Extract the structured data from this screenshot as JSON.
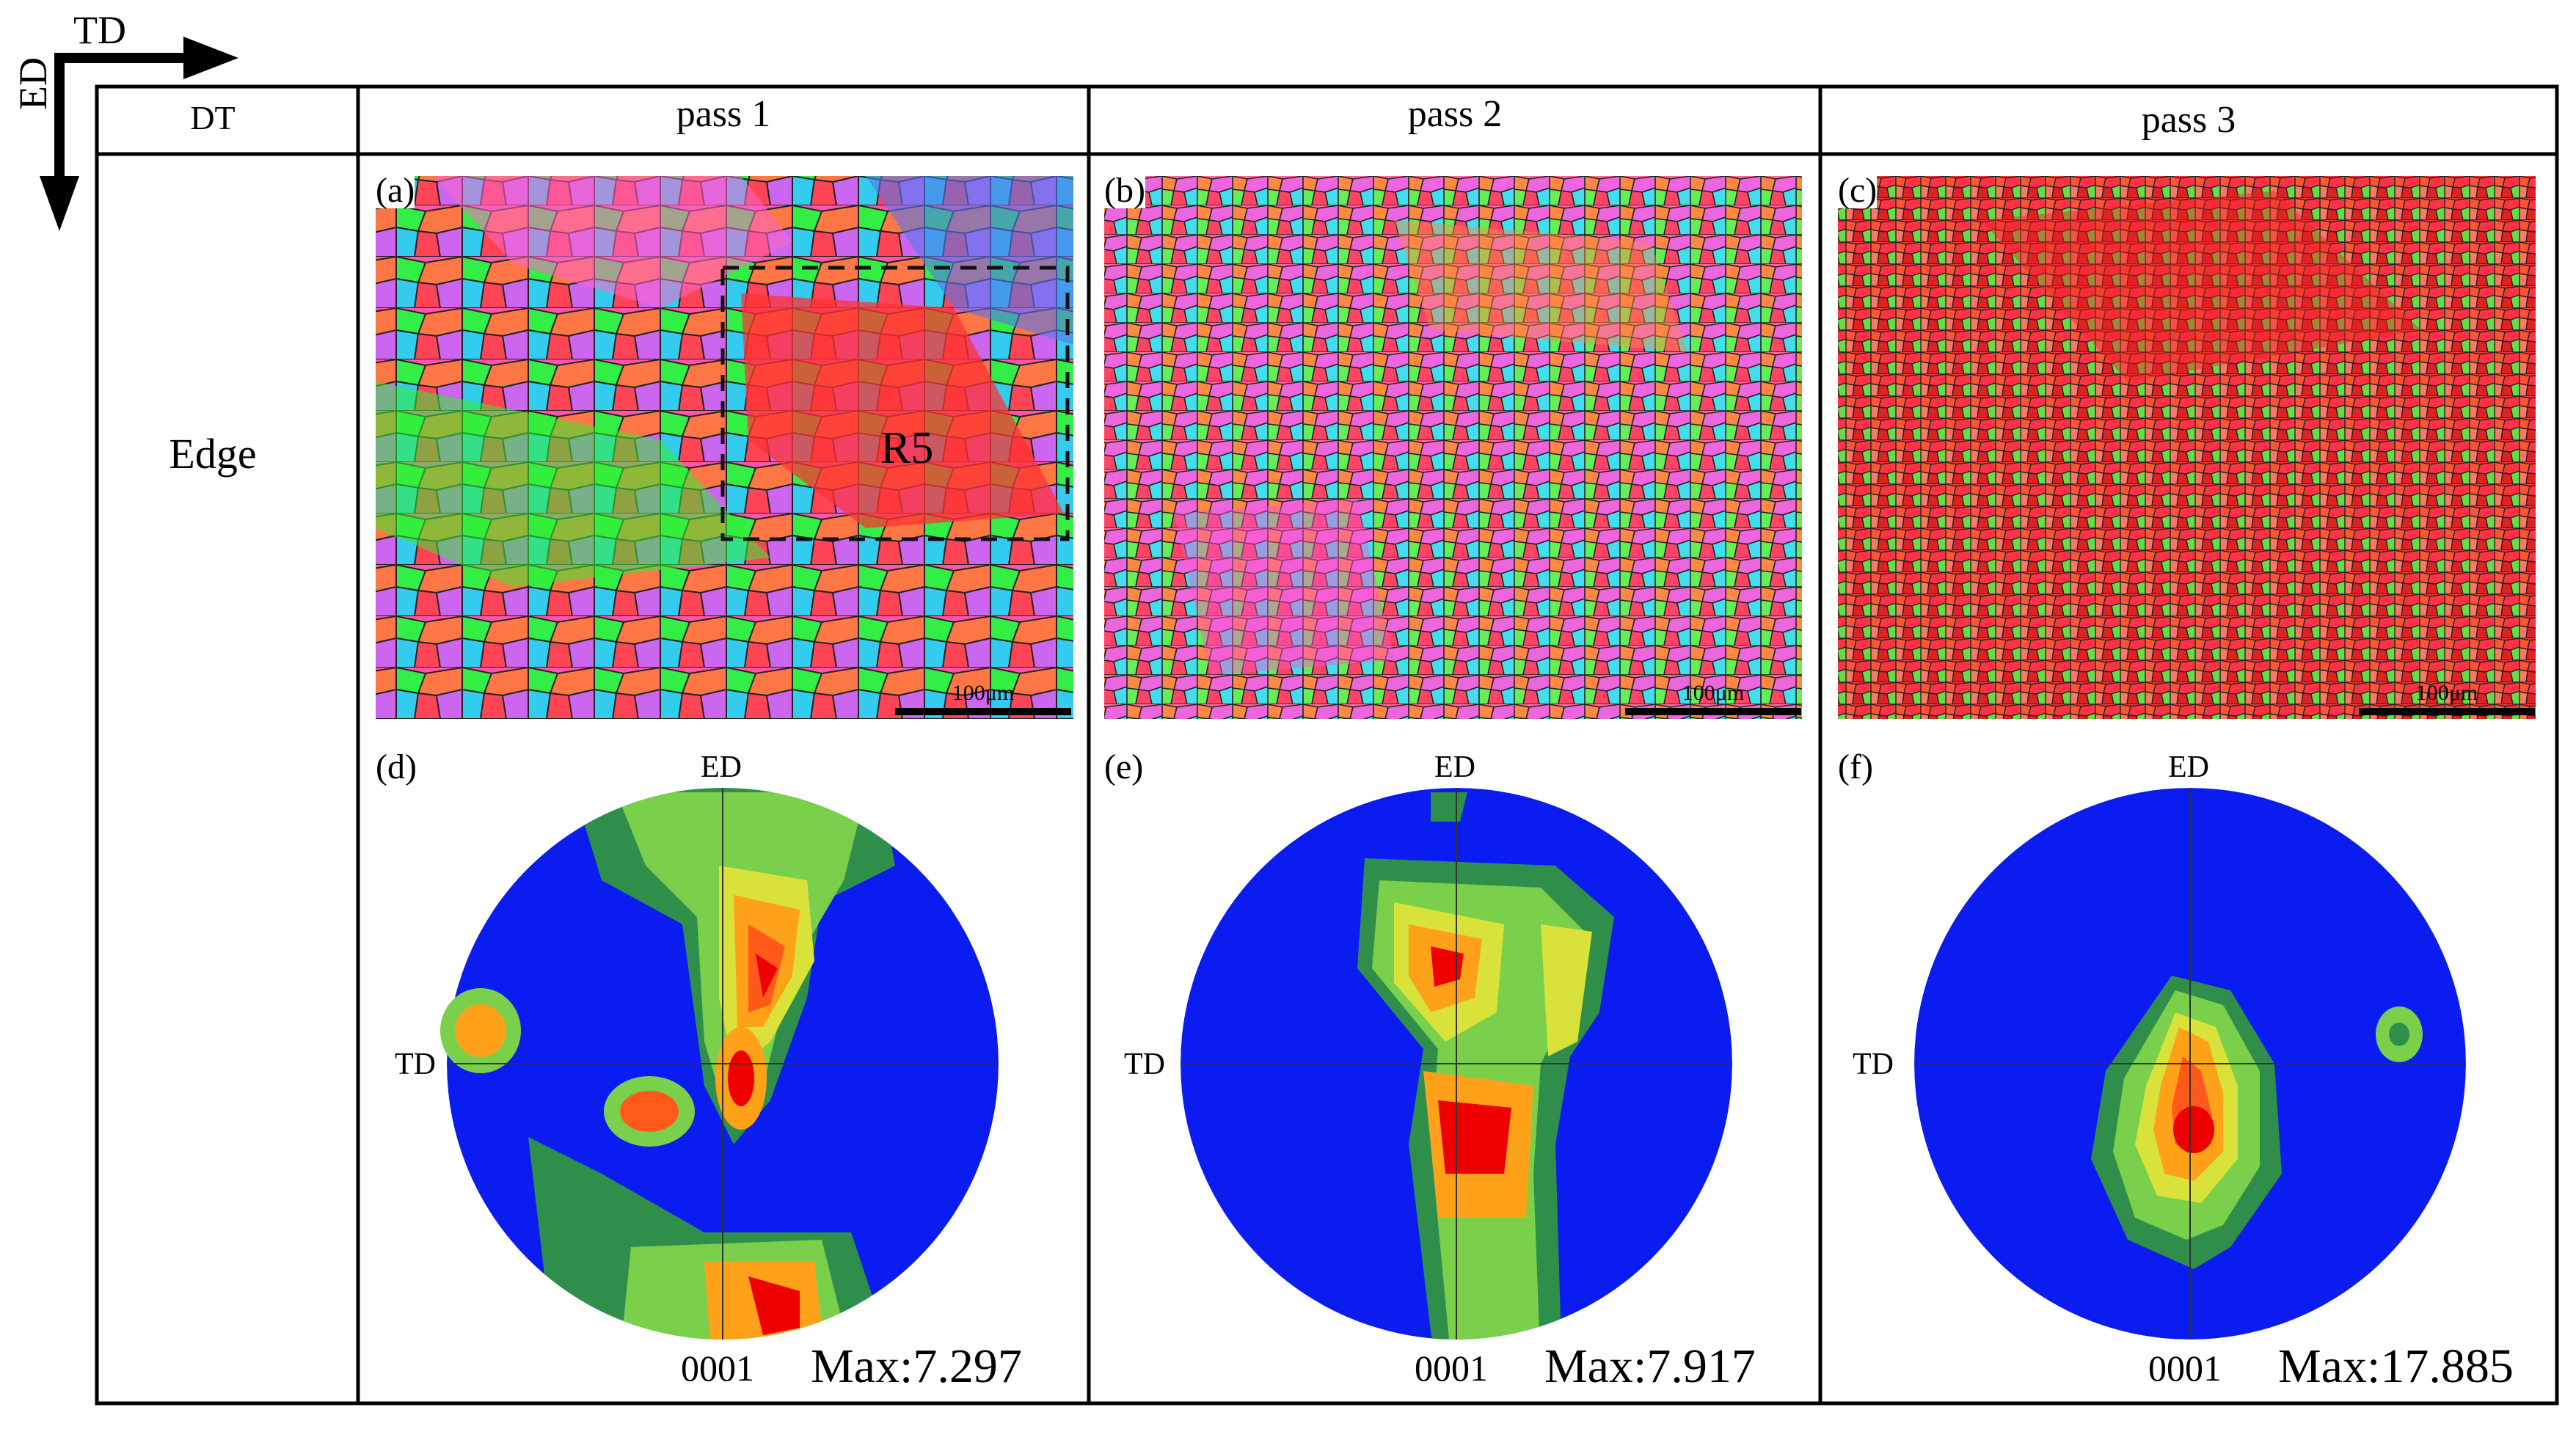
{
  "axes": {
    "td_label": "TD",
    "ed_label": "ED"
  },
  "table": {
    "header_dt": "DT",
    "columns": [
      "pass 1",
      "pass 2",
      "pass 3"
    ],
    "row_label": "Edge"
  },
  "ebsd_maps": [
    {
      "tag": "(a)",
      "scale_bar": "100μm",
      "region_label": "R5",
      "dominant_colors": [
        "#ff4444",
        "#ff66cc",
        "#33ee33",
        "#33ddee",
        "#ff8844"
      ]
    },
    {
      "tag": "(b)",
      "scale_bar": "100μm",
      "dominant_colors": [
        "#ff5599",
        "#ff8844",
        "#ee66dd",
        "#33ddee",
        "#66ee44"
      ]
    },
    {
      "tag": "(c)",
      "scale_bar": "100μm",
      "dominant_colors": [
        "#ee3333",
        "#ff5533",
        "#ff7766",
        "#66dd44",
        "#ff99aa"
      ]
    }
  ],
  "pole_figures": [
    {
      "tag": "(d)",
      "top_label": "ED",
      "left_label": "TD",
      "bottom_label": "0001",
      "max_label": "Max:7.297",
      "max": 7.297
    },
    {
      "tag": "(e)",
      "top_label": "ED",
      "left_label": "TD",
      "bottom_label": "0001",
      "max_label": "Max:7.917",
      "max": 7.917
    },
    {
      "tag": "(f)",
      "top_label": "ED",
      "left_label": "TD",
      "bottom_label": "0001",
      "max_label": "Max:17.885",
      "max": 17.885
    }
  ],
  "contour_colors": [
    "#0a1cf0",
    "#2f8f4a",
    "#7ad04a",
    "#d8e23a",
    "#ffa21a",
    "#ff5a1a",
    "#ee0000"
  ]
}
